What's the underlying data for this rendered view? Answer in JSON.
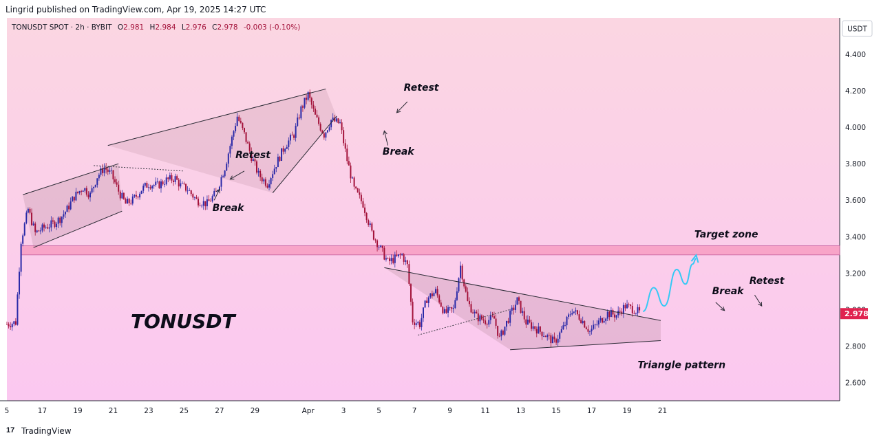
{
  "header": {
    "publisher": "Lingrid published on TradingView.com, Apr 19, 2025 14:27 UTC"
  },
  "legend": {
    "symbol": "TONUSDT SPOT · 2h · BYBIT",
    "open_label": "O",
    "open": "2.981",
    "high_label": "H",
    "high": "2.984",
    "low_label": "L",
    "low": "2.976",
    "close_label": "C",
    "close": "2.978",
    "change": "-0.003 (-0.10%)"
  },
  "currency_button": "USDT",
  "watermark": "TONUSDT",
  "footer": {
    "logo": "17",
    "brand": "TradingView"
  },
  "annotations": [
    {
      "text": "Retest",
      "x": 12.9,
      "y": 3.83
    },
    {
      "text": "Break",
      "x": 11.6,
      "y": 3.54
    },
    {
      "text": "Retest",
      "x": 22.4,
      "y": 4.2
    },
    {
      "text": "Break",
      "x": 21.2,
      "y": 3.85
    },
    {
      "text": "Target zone",
      "x": 38.8,
      "y": 3.395
    },
    {
      "text": "Break",
      "x": 39.8,
      "y": 3.085
    },
    {
      "text": "Retest",
      "x": 41.9,
      "y": 3.14
    },
    {
      "text": "Triangle pattern",
      "x": 35.6,
      "y": 2.68
    }
  ],
  "colors": {
    "bull": "#2a2aa8",
    "bear": "#a3123a",
    "background_top": "#fbd6e2",
    "background_bottom": "#fbc8f0",
    "zone": "#f79abf",
    "price_tag": "#e0224f",
    "projection": "#35c9f5"
  },
  "chart_data": {
    "type": "candlestick",
    "timeframe": "2h",
    "ylim": [
      2.5,
      4.6
    ],
    "xlim": [
      0,
      47
    ],
    "y_ticks": [
      "2.600",
      "2.800",
      "3.000",
      "3.200",
      "3.400",
      "3.600",
      "3.800",
      "4.000",
      "4.200",
      "4.400"
    ],
    "x_ticks": [
      {
        "label": "5",
        "x": 0
      },
      {
        "label": "17",
        "x": 2
      },
      {
        "label": "19",
        "x": 4
      },
      {
        "label": "21",
        "x": 6
      },
      {
        "label": "23",
        "x": 8
      },
      {
        "label": "25",
        "x": 10
      },
      {
        "label": "27",
        "x": 12
      },
      {
        "label": "29",
        "x": 14
      },
      {
        "label": "Apr",
        "x": 17
      },
      {
        "label": "3",
        "x": 19
      },
      {
        "label": "5",
        "x": 21
      },
      {
        "label": "7",
        "x": 23
      },
      {
        "label": "9",
        "x": 25
      },
      {
        "label": "11",
        "x": 27
      },
      {
        "label": "13",
        "x": 29
      },
      {
        "label": "15",
        "x": 31
      },
      {
        "label": "17",
        "x": 33
      },
      {
        "label": "19",
        "x": 35
      },
      {
        "label": "21",
        "x": 37
      }
    ],
    "last_price": "2.978",
    "last_price_value": 2.978,
    "close_path": [
      [
        0,
        2.92
      ],
      [
        0.5,
        2.93
      ],
      [
        0.8,
        3.38
      ],
      [
        1.2,
        3.55
      ],
      [
        1.6,
        3.42
      ],
      [
        2.1,
        3.45
      ],
      [
        2.6,
        3.47
      ],
      [
        3.0,
        3.5
      ],
      [
        3.4,
        3.55
      ],
      [
        3.8,
        3.62
      ],
      [
        4.3,
        3.67
      ],
      [
        4.7,
        3.63
      ],
      [
        5.1,
        3.73
      ],
      [
        5.5,
        3.78
      ],
      [
        5.9,
        3.74
      ],
      [
        6.3,
        3.65
      ],
      [
        6.7,
        3.58
      ],
      [
        7.1,
        3.6
      ],
      [
        7.6,
        3.66
      ],
      [
        8.0,
        3.69
      ],
      [
        8.5,
        3.68
      ],
      [
        9.0,
        3.71
      ],
      [
        9.5,
        3.72
      ],
      [
        9.8,
        3.68
      ],
      [
        10.2,
        3.66
      ],
      [
        10.7,
        3.6
      ],
      [
        11.3,
        3.58
      ],
      [
        11.8,
        3.64
      ],
      [
        12.3,
        3.78
      ],
      [
        12.7,
        3.94
      ],
      [
        13.0,
        4.06
      ],
      [
        13.4,
        3.96
      ],
      [
        13.8,
        3.84
      ],
      [
        14.2,
        3.74
      ],
      [
        14.7,
        3.69
      ],
      [
        15.2,
        3.8
      ],
      [
        15.7,
        3.9
      ],
      [
        16.2,
        3.96
      ],
      [
        16.6,
        4.1
      ],
      [
        17.0,
        4.18
      ],
      [
        17.4,
        4.06
      ],
      [
        17.9,
        3.96
      ],
      [
        18.3,
        4.04
      ],
      [
        18.8,
        4.02
      ],
      [
        19.2,
        3.82
      ],
      [
        19.6,
        3.66
      ],
      [
        20.1,
        3.58
      ],
      [
        20.6,
        3.42
      ],
      [
        21.0,
        3.35
      ],
      [
        21.5,
        3.26
      ],
      [
        21.9,
        3.28
      ],
      [
        22.3,
        3.3
      ],
      [
        22.6,
        3.24
      ],
      [
        22.9,
        2.94
      ],
      [
        23.3,
        2.92
      ],
      [
        23.7,
        3.06
      ],
      [
        24.2,
        3.1
      ],
      [
        24.7,
        2.98
      ],
      [
        25.2,
        3.0
      ],
      [
        25.6,
        3.24
      ],
      [
        26.0,
        3.04
      ],
      [
        26.5,
        2.96
      ],
      [
        27.0,
        2.94
      ],
      [
        27.5,
        2.95
      ],
      [
        27.8,
        2.84
      ],
      [
        28.3,
        2.95
      ],
      [
        28.8,
        3.05
      ],
      [
        29.3,
        2.93
      ],
      [
        29.8,
        2.9
      ],
      [
        30.4,
        2.86
      ],
      [
        30.9,
        2.82
      ],
      [
        31.4,
        2.9
      ],
      [
        31.9,
        3.0
      ],
      [
        32.4,
        2.95
      ],
      [
        32.9,
        2.88
      ],
      [
        33.4,
        2.93
      ],
      [
        33.9,
        2.98
      ],
      [
        34.4,
        2.97
      ],
      [
        34.9,
        3.02
      ],
      [
        35.4,
        3.0
      ],
      [
        35.8,
        2.978
      ]
    ],
    "target_zone": {
      "from": 3.3,
      "to": 3.35,
      "x_start": 0.8
    },
    "pattern_lines": [
      {
        "from": [
          0.9,
          3.63
        ],
        "to": [
          6.3,
          3.8
        ]
      },
      {
        "from": [
          1.5,
          3.34
        ],
        "to": [
          6.5,
          3.54
        ]
      },
      {
        "from": [
          5.7,
          3.9
        ],
        "to": [
          18.0,
          4.21
        ]
      },
      {
        "from": [
          15.0,
          3.64
        ],
        "to": [
          18.6,
          4.06
        ]
      },
      {
        "from": [
          21.3,
          3.23
        ],
        "to": [
          36.9,
          2.94
        ]
      },
      {
        "from": [
          28.4,
          2.78
        ],
        "to": [
          36.9,
          2.83
        ]
      }
    ],
    "dotted_lines": [
      {
        "from": [
          4.9,
          3.79
        ],
        "to": [
          10.0,
          3.76
        ]
      },
      {
        "from": [
          23.2,
          2.86
        ],
        "to": [
          28.4,
          3.0
        ]
      }
    ],
    "projection_path": [
      [
        35.9,
        2.99
      ],
      [
        36.5,
        3.12
      ],
      [
        37.1,
        3.02
      ],
      [
        37.8,
        3.22
      ],
      [
        38.3,
        3.14
      ],
      [
        38.7,
        3.25
      ],
      [
        38.9,
        3.28
      ]
    ]
  }
}
